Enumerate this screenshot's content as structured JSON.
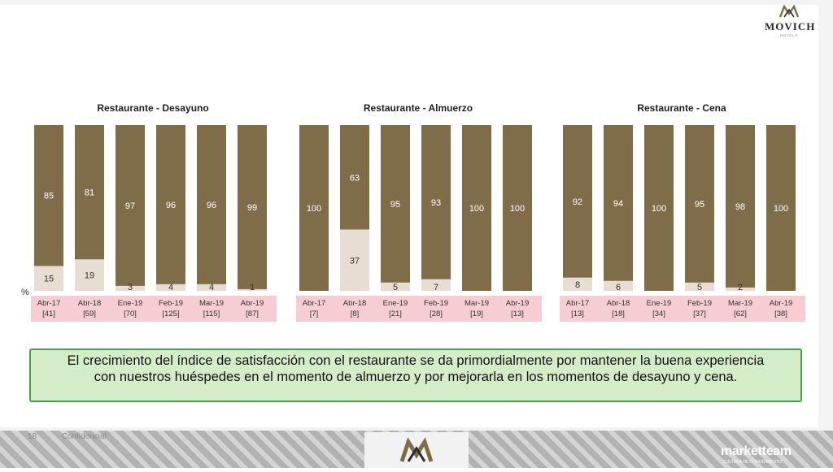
{
  "brand": {
    "name": "MOVICH",
    "sub": "HOTELS"
  },
  "footer": {
    "page": "18",
    "label": "Confidencial",
    "brand": "marketteam",
    "brand_sub": "CULTURA DE CONOCIMIENTO"
  },
  "note": "El crecimiento del índice de satisfacción con el restaurante se da primordialmente por mantener la buena experiencia con nuestros huéspedes en el momento de almuerzo y por mejorarla en los momentos de desayuno y cena.",
  "colors": {
    "top": "#7f6d4a",
    "bottom": "#e7ddd2",
    "label_band": "#f5cdd3"
  },
  "percent_symbol": "%",
  "chart_data": [
    {
      "type": "bar",
      "stacked": true,
      "title": "Restaurante - Desayuno",
      "categories": [
        "Abr-17",
        "Abr-18",
        "Ene-19",
        "Feb-19",
        "Mar-19",
        "Abr-19"
      ],
      "bases": [
        "[41]",
        "[59]",
        "[70]",
        "[125]",
        "[115]",
        "[87]"
      ],
      "series": [
        {
          "values": [
            15,
            19,
            3,
            4,
            4,
            1
          ]
        },
        {
          "values": [
            85,
            81,
            97,
            96,
            96,
            99
          ]
        }
      ],
      "ylim": [
        0,
        100
      ]
    },
    {
      "type": "bar",
      "stacked": true,
      "title": "Restaurante - Almuerzo",
      "categories": [
        "Abr-17",
        "Abr-18",
        "Ene-19",
        "Feb-19",
        "Mar-19",
        "Abr-19"
      ],
      "bases": [
        "[7]",
        "[8]",
        "[21]",
        "[28]",
        "[19]",
        "[13]"
      ],
      "series": [
        {
          "values": [
            0,
            37,
            5,
            7,
            0,
            0
          ]
        },
        {
          "values": [
            100,
            63,
            95,
            93,
            100,
            100
          ]
        }
      ],
      "ylim": [
        0,
        100
      ]
    },
    {
      "type": "bar",
      "stacked": true,
      "title": "Restaurante - Cena",
      "categories": [
        "Abr-17",
        "Abr-18",
        "Ene-19",
        "Feb-19",
        "Mar-19",
        "Abr-19"
      ],
      "bases": [
        "[13]",
        "[18]",
        "[34]",
        "[37]",
        "[62]",
        "[38]"
      ],
      "series": [
        {
          "values": [
            8,
            6,
            0,
            5,
            2,
            0
          ]
        },
        {
          "values": [
            92,
            94,
            100,
            95,
            98,
            100
          ]
        }
      ],
      "ylim": [
        0,
        100
      ]
    }
  ]
}
